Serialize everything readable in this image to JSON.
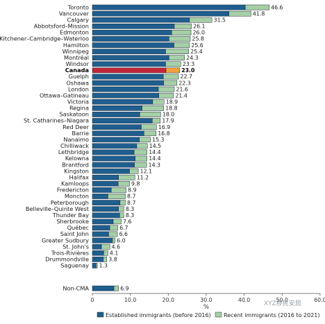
{
  "chart_data": {
    "type": "bar",
    "orientation": "horizontal",
    "stacked": true,
    "xlabel": "%",
    "xlim": [
      0,
      60
    ],
    "xticks": [
      "0",
      "10.0",
      "20.0",
      "30.0",
      "40.0",
      "50.0",
      "60.0"
    ],
    "grid": false,
    "legend_position": "bottom",
    "highlight_category": "Canada",
    "categories": [
      "Toronto",
      "Vancouver",
      "Calgary",
      "Abbotsford–Mission",
      "Edmonton",
      "Kitchener–Cambridge–Waterloo",
      "Hamilton",
      "Winnipeg",
      "Montréal",
      "Windsor",
      "Canada",
      "Guelph",
      "Oshawa",
      "London",
      "Ottawa–Gatineau",
      "Victoria",
      "Regina",
      "Saskatoon",
      "St. Catharines–Niagara",
      "Red Deer",
      "Barrie",
      "Nanaimo",
      "Chilliwack",
      "Lethbridge",
      "Kelowna",
      "Brantford",
      "Kingston",
      "Halifax",
      "Kamloops",
      "Fredericton",
      "Moncton",
      "Peterborough",
      "Belleville–Quinte West",
      "Thunder Bay",
      "Sherbrooke",
      "Québec",
      "Saint John",
      "Greater Sudbury",
      "St. John's",
      "Trois-Rivières",
      "Drummondville",
      "Saguenay",
      "Non-CMA"
    ],
    "total_labels": [
      "46.6",
      "41.8",
      "31.5",
      "26.1",
      "26.0",
      "25.8",
      "25.6",
      "25.4",
      "24.3",
      "23.3",
      "23.0",
      "22.7",
      "22.3",
      "21.6",
      "21.4",
      "18.9",
      "18.8",
      "18.0",
      "17.9",
      "16.9",
      "16.8",
      "15.3",
      "14.5",
      "14.4",
      "14.4",
      "14.3",
      "12.1",
      "11.2",
      "9.8",
      "8.9",
      "8.7",
      "8.7",
      "8.3",
      "8.3",
      "7.6",
      "6.7",
      "6.6",
      "6.0",
      "4.6",
      "4.1",
      "3.8",
      "1.3",
      "6.9"
    ],
    "series": [
      {
        "name": "Established immigrants (before 2016)",
        "values": [
          40.3,
          36.0,
          25.6,
          21.6,
          20.9,
          20.2,
          21.5,
          19.3,
          20.2,
          19.3,
          19.4,
          18.7,
          18.8,
          17.4,
          17.5,
          15.9,
          13.1,
          12.5,
          15.8,
          12.9,
          13.6,
          12.4,
          11.7,
          11.0,
          11.3,
          11.1,
          9.8,
          6.9,
          6.8,
          5.0,
          4.1,
          7.3,
          6.9,
          7.2,
          5.5,
          4.6,
          4.3,
          5.3,
          2.4,
          3.0,
          2.9,
          1.0,
          5.7
        ],
        "color": "#1f5e8e"
      },
      {
        "name": "Recent immigrants (2016 to 2021)",
        "values": [
          6.3,
          5.8,
          5.9,
          4.5,
          5.1,
          5.6,
          4.1,
          6.1,
          4.1,
          4.0,
          3.6,
          4.0,
          3.5,
          4.2,
          3.9,
          3.0,
          5.7,
          5.5,
          2.1,
          4.0,
          3.2,
          2.9,
          2.8,
          3.4,
          3.1,
          3.2,
          2.3,
          4.3,
          3.0,
          3.9,
          4.6,
          1.4,
          1.4,
          1.1,
          2.1,
          2.1,
          2.3,
          0.7,
          2.2,
          1.1,
          0.9,
          0.3,
          1.2
        ],
        "color": "#a6cfa6"
      }
    ],
    "highlight_colors": {
      "established": "#c0283a",
      "recent": "#f0a23a"
    }
  },
  "watermark": "XYZ移民安居"
}
